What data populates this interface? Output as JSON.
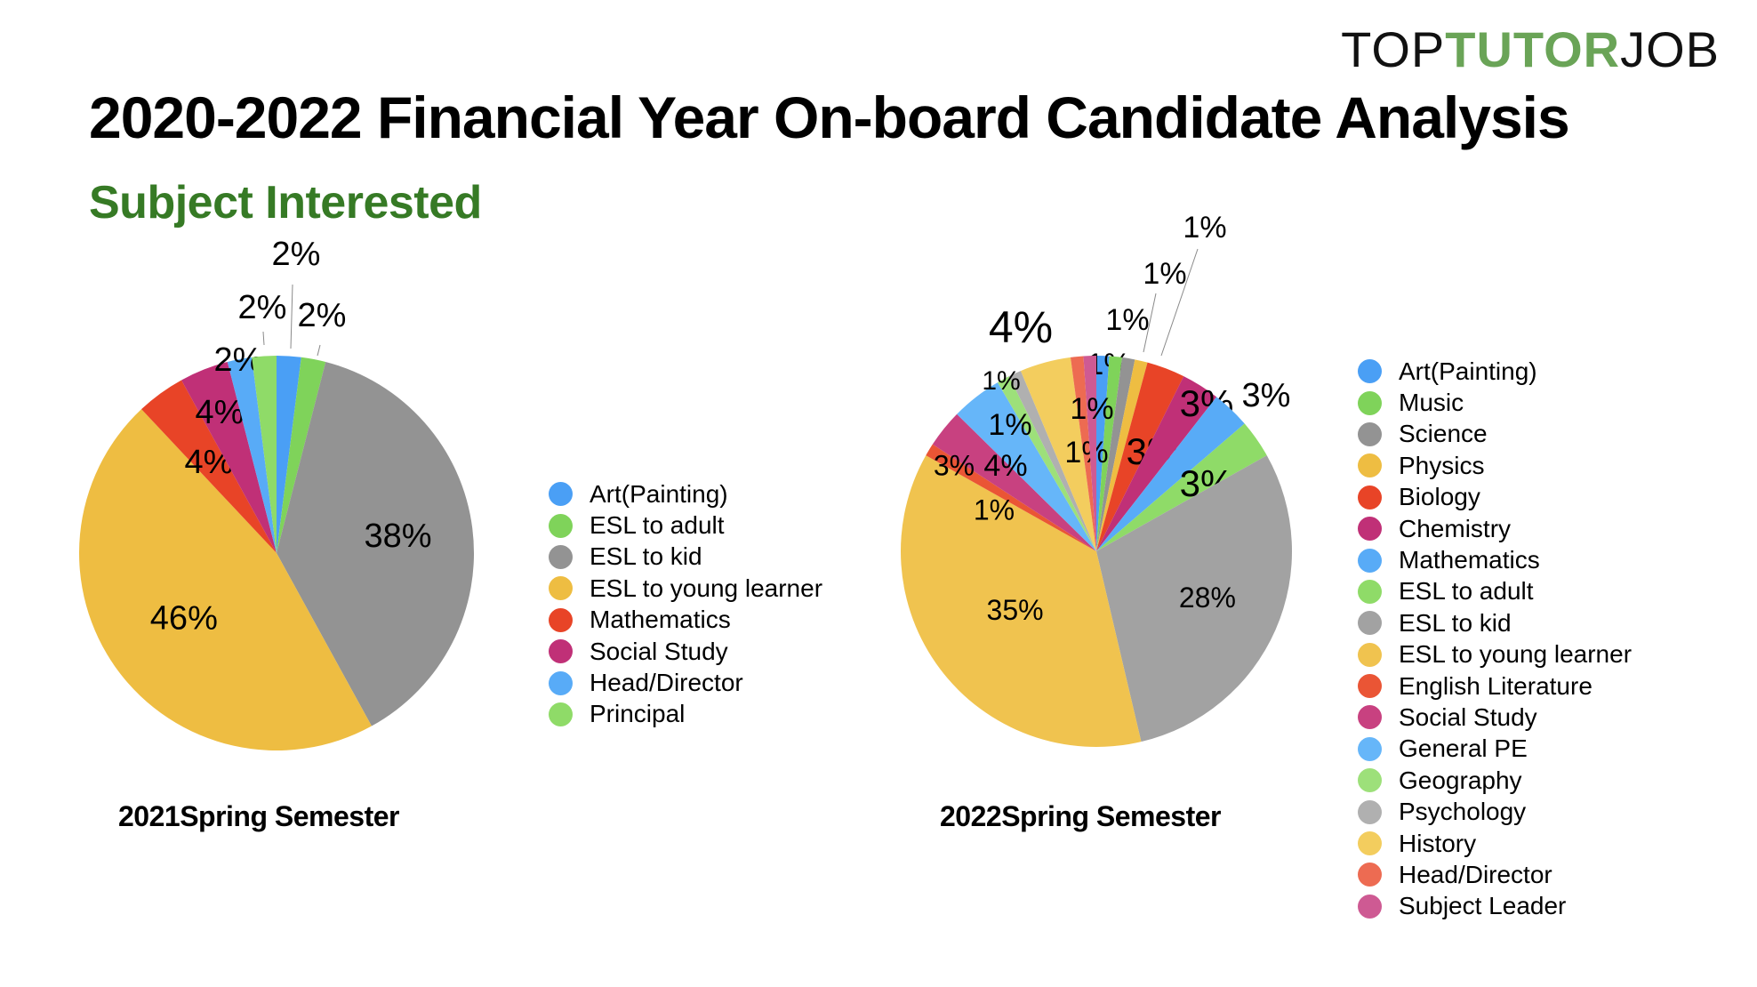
{
  "logo": {
    "part1": "TOP",
    "part2": "TUTOR",
    "part3": "JOB",
    "accent": "#6aa457"
  },
  "header": {
    "title": "2020-2022 Financial Year On-board Candidate Analysis",
    "subtitle": "Subject Interested",
    "subtitle_color": "#367a25"
  },
  "chart_data": [
    {
      "type": "pie",
      "title": "2021Spring Semester",
      "unit": "%",
      "legend_position": "right",
      "categories": [
        "Art(Painting)",
        "ESL to adult",
        "ESL to kid",
        "ESL to young learner",
        "Mathematics",
        "Social Study",
        "Head/Director",
        "Principal"
      ],
      "values": [
        2,
        2,
        38,
        46,
        4,
        4,
        2,
        2
      ],
      "labels": [
        "2%",
        "2%",
        "38%",
        "46%",
        "4%",
        "4%",
        "2%",
        "2%"
      ],
      "colors": [
        "#4a9ff5",
        "#7fd35a",
        "#939393",
        "#eebd42",
        "#e84427",
        "#c03077",
        "#58abf7",
        "#8fdb68"
      ]
    },
    {
      "type": "pie",
      "title": "2022Spring Semester",
      "unit": "%",
      "legend_position": "right",
      "categories": [
        "Art(Painting)",
        "Music",
        "Science",
        "Physics",
        "Biology",
        "Chemistry",
        "Mathematics",
        "ESL to adult",
        "ESL to kid",
        "ESL to young learner",
        "English Literature",
        "Social Study",
        "General PE",
        "Geography",
        "Psychology",
        "History",
        "Head/Director",
        "Subject Leader"
      ],
      "values": [
        1,
        1,
        1,
        1,
        3,
        3,
        3,
        3,
        28,
        35,
        1,
        3,
        4,
        1,
        1,
        4,
        1,
        1
      ],
      "labels": [
        "1%",
        "1%",
        "1%",
        "1%",
        "3%",
        "3%",
        "3%",
        "3%",
        "28%",
        "35%",
        "1%",
        "3%",
        "4%",
        "1%",
        "1%",
        "4%",
        "1%",
        "1%"
      ],
      "colors": [
        "#4a9ff5",
        "#7fd35a",
        "#939393",
        "#eebd42",
        "#e84427",
        "#c03077",
        "#58abf7",
        "#8fdb68",
        "#a2a2a2",
        "#f0c34f",
        "#ea5535",
        "#c84180",
        "#66b6f9",
        "#9de07a",
        "#b0b0b0",
        "#f3cd5e",
        "#ed6b52",
        "#ce5a93"
      ]
    }
  ]
}
